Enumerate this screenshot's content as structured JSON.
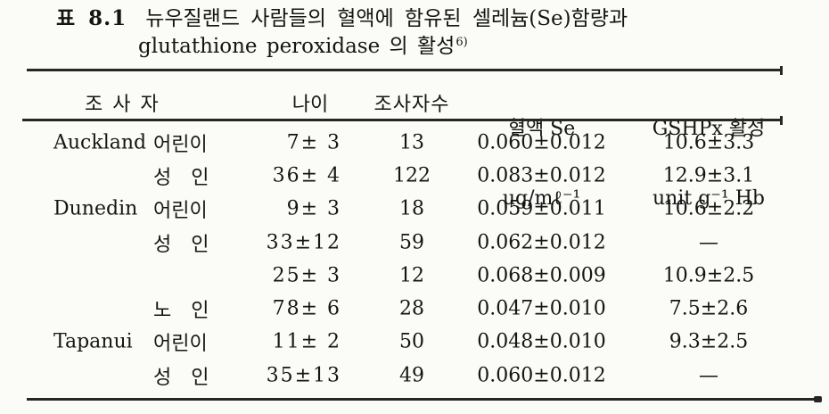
{
  "page": {
    "background": "#fbfbf8",
    "ink": "#151515",
    "rule_color": "#262626"
  },
  "title": {
    "tag": "표 8.1",
    "line1": "뉴우질랜드 사람들의 혈액에 함유된 셀레늄(Se)함량과",
    "line2": "glutathione peroxidase 의 활성",
    "footnote_ref": "6)"
  },
  "chart_data": {
    "type": "table",
    "title": "표 8.1 뉴우질랜드 사람들의 혈액에 함유된 셀레늄(Se)함량과 glutathione peroxidase 의 활성 6)",
    "header": {
      "col1": "조 사 자",
      "col2": "나이",
      "col3": "조사자수",
      "col4_line1": "혈액 Se",
      "col4_line2": "μg/mℓ⁻¹",
      "col5_line1": "GSHPx 활성",
      "col5_line2": "unit g⁻¹ Hb"
    },
    "rows": [
      {
        "region": "Auckland",
        "group": "어린이",
        "age": "7± 3",
        "n": "13",
        "se": "0.060±0.012",
        "gshpx": "10.6±3.3"
      },
      {
        "region": "",
        "group": "성　인",
        "age": "36± 4",
        "n": "122",
        "se": "0.083±0.012",
        "gshpx": "12.9±3.1"
      },
      {
        "region": "Dunedin",
        "group": "어린이",
        "age": "9± 3",
        "n": "18",
        "se": "0.059±0.011",
        "gshpx": "10.6±2.2"
      },
      {
        "region": "",
        "group": "성　인",
        "age": "33±12",
        "n": "59",
        "se": "0.062±0.012",
        "gshpx": "—"
      },
      {
        "region": "",
        "group": "",
        "age": "25± 3",
        "n": "12",
        "se": "0.068±0.009",
        "gshpx": "10.9±2.5"
      },
      {
        "region": "",
        "group": "노　인",
        "age": "78± 6",
        "n": "28",
        "se": "0.047±0.010",
        "gshpx": "7.5±2.6"
      },
      {
        "region": "Tapanui",
        "group": "어린이",
        "age": "11± 2",
        "n": "50",
        "se": "0.048±0.010",
        "gshpx": "9.3±2.5"
      },
      {
        "region": "",
        "group": "성　인",
        "age": "35±13",
        "n": "49",
        "se": "0.060±0.012",
        "gshpx": "—"
      }
    ]
  }
}
